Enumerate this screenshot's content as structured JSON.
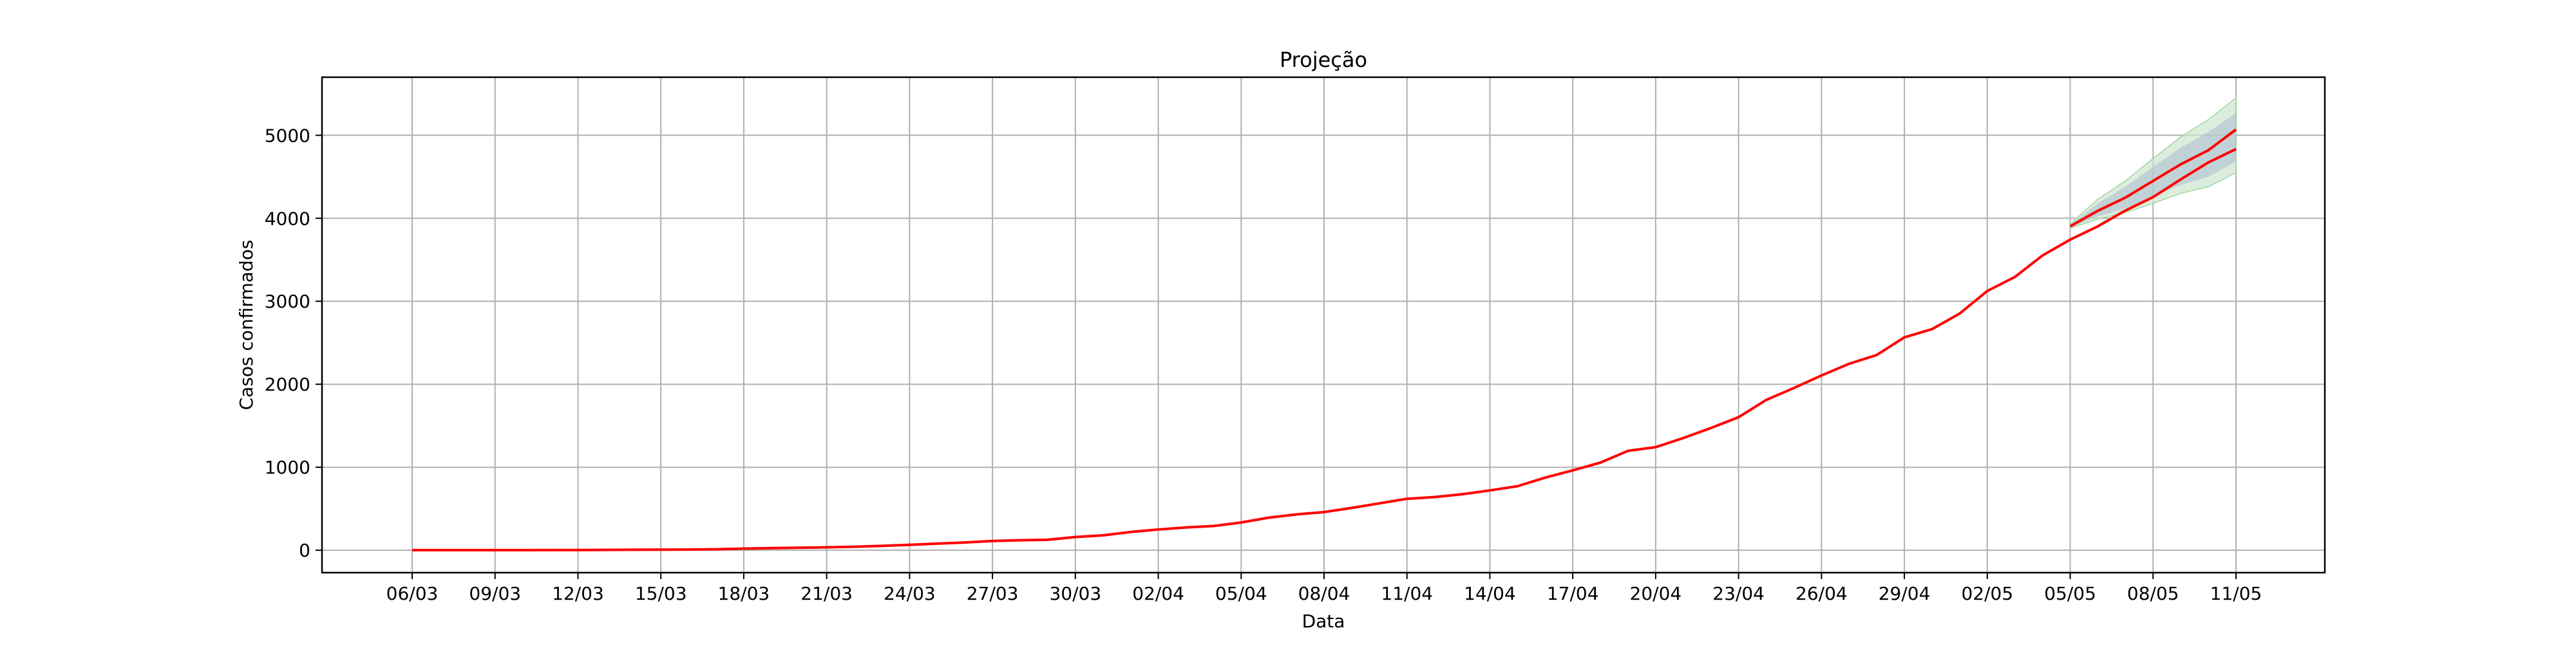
{
  "chart_data": {
    "type": "line",
    "title": "Projeção",
    "xlabel": "Data",
    "ylabel": "Casos confirmados",
    "grid": true,
    "legend": "none",
    "x_tick_labels": [
      "06/03",
      "09/03",
      "12/03",
      "15/03",
      "18/03",
      "21/03",
      "24/03",
      "27/03",
      "30/03",
      "02/04",
      "05/04",
      "08/04",
      "11/04",
      "14/04",
      "17/04",
      "20/04",
      "23/04",
      "26/04",
      "29/04",
      "02/05",
      "05/05",
      "08/05",
      "11/05"
    ],
    "y_ticks": [
      0,
      1000,
      2000,
      3000,
      4000,
      5000
    ],
    "y_tick_labels": [
      "0",
      "1000",
      "2000",
      "3000",
      "4000",
      "5000"
    ],
    "ylim": [
      -270,
      5700
    ],
    "x_start": "06/03",
    "x_end": "11/05",
    "colors": {
      "line": "#ff0000",
      "band_outer": "#cfe6cf",
      "band_inner": "#a9bcd1",
      "grid": "#b0b0b0"
    },
    "series": [
      {
        "x": [
          "06/03",
          "07/03",
          "08/03",
          "09/03",
          "10/03",
          "11/03",
          "12/03",
          "13/03",
          "14/03",
          "15/03",
          "16/03",
          "17/03",
          "18/03",
          "19/03",
          "20/03",
          "21/03",
          "22/03",
          "23/03",
          "24/03",
          "25/03",
          "26/03",
          "27/03",
          "28/03",
          "29/03",
          "30/03",
          "31/03",
          "01/04",
          "02/04",
          "03/04",
          "04/04",
          "05/04",
          "06/04",
          "07/04",
          "08/04",
          "09/04",
          "10/04",
          "11/04",
          "12/04",
          "13/04",
          "14/04",
          "15/04",
          "16/04",
          "17/04",
          "18/04",
          "19/04",
          "20/04",
          "21/04",
          "22/04",
          "23/04",
          "24/04",
          "25/04",
          "26/04",
          "27/04",
          "28/04",
          "29/04",
          "30/04",
          "01/05",
          "02/05",
          "03/05",
          "04/05",
          "05/05",
          "06/05",
          "07/05",
          "08/05",
          "09/05",
          "10/05",
          "11/05"
        ],
        "values": [
          1,
          1,
          1,
          1,
          1,
          2,
          2,
          4,
          6,
          7,
          8,
          12,
          20,
          26,
          30,
          35,
          42,
          53,
          65,
          80,
          93,
          112,
          121,
          126,
          159,
          180,
          220,
          250,
          275,
          292,
          335,
          393,
          432,
          460,
          510,
          565,
          620,
          641,
          675,
          721,
          772,
          875,
          962,
          1056,
          1198,
          1242,
          1352,
          1473,
          1603,
          1811,
          1955,
          2106,
          2247,
          2353,
          2565,
          2664,
          2852,
          3124,
          3293,
          3552,
          3743,
          3903,
          4094,
          4255,
          4469,
          4673,
          4834
        ]
      }
    ],
    "forecast": {
      "x": [
        "05/05",
        "06/05",
        "07/05",
        "08/05",
        "09/05",
        "10/05",
        "11/05"
      ],
      "inner_low": [
        3890,
        4020,
        4120,
        4260,
        4400,
        4500,
        4680
      ],
      "inner_high": [
        3920,
        4180,
        4380,
        4620,
        4850,
        5040,
        5270
      ],
      "outer_low": [
        3880,
        3990,
        4070,
        4180,
        4300,
        4380,
        4550
      ],
      "outer_high": [
        3930,
        4230,
        4450,
        4720,
        4980,
        5190,
        5450
      ],
      "values": [
        3903,
        4090,
        4250,
        4450,
        4650,
        4820,
        5070
      ]
    }
  }
}
